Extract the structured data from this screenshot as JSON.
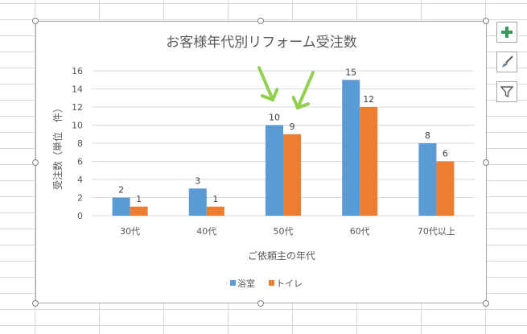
{
  "chart_data": {
    "type": "bar",
    "title": "お客様年代別リフォーム受注数",
    "xlabel": "ご依頼主の年代",
    "ylabel": "受注数（単位　件）",
    "categories": [
      "30代",
      "40代",
      "50代",
      "60代",
      "70代以上"
    ],
    "series": [
      {
        "name": "浴室",
        "values": [
          2,
          3,
          10,
          15,
          8
        ],
        "color": "#5b9bd5"
      },
      {
        "name": "トイレ",
        "values": [
          1,
          1,
          9,
          12,
          6
        ],
        "color": "#ed7d31"
      }
    ],
    "ylim": [
      0,
      16
    ],
    "yticks": [
      0,
      2,
      4,
      6,
      8,
      10,
      12,
      14,
      16
    ],
    "grid": true,
    "legend": "bottom",
    "data_labels": true,
    "annotation": "green arrows pointing to the 50代 bars",
    "annotation_color": "#92d050"
  },
  "chart_tools": {
    "elements_icon": "plus-icon",
    "styles_icon": "brush-icon",
    "filters_icon": "funnel-icon",
    "accent_color": "#3c9a5f"
  }
}
